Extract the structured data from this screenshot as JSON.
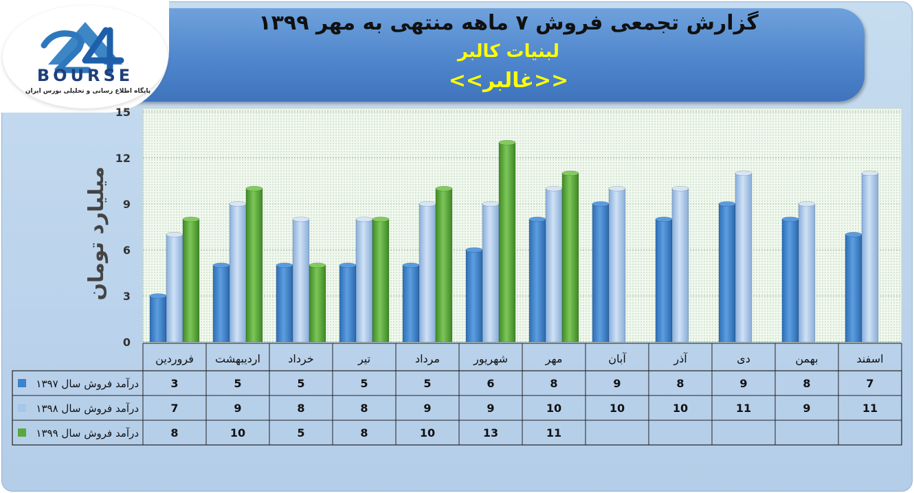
{
  "header": {
    "title": "گزارش تجمعی فروش ۷ ماهه منتهی به مهر ۱۳۹۹",
    "company": "لبنیات کالبر",
    "ticker": "<<غالبر>>"
  },
  "logo": {
    "text": "BOURSE",
    "tagline": "پایگاه اطلاع رسانی و تحلیلی بورس ایران"
  },
  "colors": {
    "s1397": "#3d82cc",
    "s1398": "#a6c6ea",
    "s1399": "#5aa83a"
  },
  "chart_data": {
    "type": "bar",
    "ylabel": "میلیارد تومان",
    "ylim": [
      0,
      15
    ],
    "yticks": [
      0,
      3,
      6,
      9,
      12,
      15
    ],
    "categories": [
      "فروردین",
      "اردیبهشت",
      "خرداد",
      "تیر",
      "مرداد",
      "شهریور",
      "مهر",
      "آبان",
      "آذر",
      "دی",
      "بهمن",
      "اسفند"
    ],
    "series": [
      {
        "name": "درآمد فروش سال ۱۳۹۷",
        "values": [
          3,
          5,
          5,
          5,
          5,
          6,
          8,
          9,
          8,
          9,
          8,
          7
        ]
      },
      {
        "name": "درآمد فروش سال ۱۳۹۸",
        "values": [
          7,
          9,
          8,
          8,
          9,
          9,
          10,
          10,
          10,
          11,
          9,
          11
        ]
      },
      {
        "name": "درآمد فروش سال ۱۳۹۹",
        "values": [
          8,
          10,
          5,
          8,
          10,
          13,
          11,
          null,
          null,
          null,
          null,
          null
        ]
      }
    ]
  }
}
